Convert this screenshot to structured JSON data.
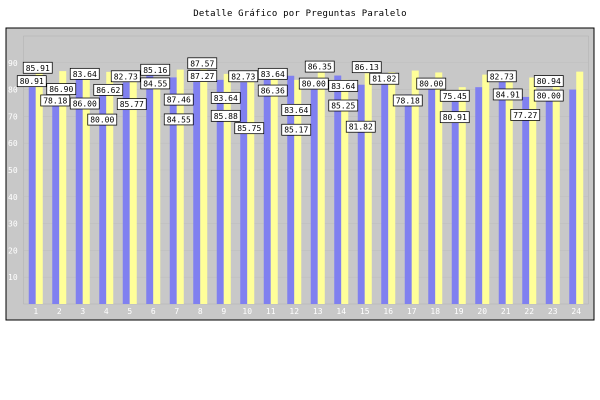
{
  "chart_data": {
    "type": "bar",
    "title": "Detalle Gráfico por Preguntas Paralelo",
    "xlabel": "",
    "ylabel": "",
    "ylim": [
      0,
      100
    ],
    "y_ticks": [
      10,
      20,
      30,
      40,
      50,
      60,
      70,
      80,
      90
    ],
    "categories": [
      "1",
      "2",
      "3",
      "4",
      "5",
      "6",
      "7",
      "8",
      "9",
      "10",
      "11",
      "12",
      "13",
      "14",
      "15",
      "16",
      "17",
      "18",
      "19",
      "20",
      "21",
      "22",
      "23",
      "24"
    ],
    "series": [
      {
        "color": "#8080f0",
        "values": [
          80.91,
          78.18,
          86.0,
          80.0,
          82.73,
          85.16,
          84.55,
          87.27,
          83.64,
          82.73,
          83.64,
          85.17,
          80.0,
          85.25,
          81.82,
          81.82,
          78.18,
          80.0,
          75.45,
          80.91,
          84.91,
          77.27,
          80.0,
          80.0
        ]
      },
      {
        "color": "#ffff99",
        "values": [
          85.91,
          86.9,
          83.64,
          86.62,
          85.77,
          84.55,
          87.46,
          87.57,
          85.88,
          85.75,
          86.36,
          83.64,
          86.35,
          83.64,
          86.13,
          86.5,
          87.1,
          86.4,
          80.91,
          85.6,
          82.73,
          84.5,
          80.94,
          86.7
        ]
      }
    ],
    "data_labels": [
      {
        "text": "80.91",
        "x": "1",
        "y": 80.91
      },
      {
        "text": "85.91",
        "x": "1",
        "y": 85.91
      },
      {
        "text": "78.18",
        "x": "2",
        "y": 78.18
      },
      {
        "text": "86.90",
        "x": "2",
        "y": 86.9
      },
      {
        "text": "83.64",
        "x": "3",
        "y": 83.64
      },
      {
        "text": "86.00",
        "x": "3",
        "y": 86.0
      },
      {
        "text": "80.00",
        "x": "4",
        "y": 80.0
      },
      {
        "text": "86.62",
        "x": "4",
        "y": 86.62
      },
      {
        "text": "82.73",
        "x": "5",
        "y": 82.73
      },
      {
        "text": "85.77",
        "x": "5",
        "y": 85.77
      },
      {
        "text": "85.16",
        "x": "6",
        "y": 85.16
      },
      {
        "text": "84.55",
        "x": "6",
        "y": 84.55
      },
      {
        "text": "87.46",
        "x": "7",
        "y": 87.46
      },
      {
        "text": "84.55",
        "x": "7",
        "y": 84.55
      },
      {
        "text": "87.57",
        "x": "8",
        "y": 87.57
      },
      {
        "text": "87.27",
        "x": "8",
        "y": 87.27
      },
      {
        "text": "83.64",
        "x": "9",
        "y": 83.64
      },
      {
        "text": "85.88",
        "x": "9",
        "y": 85.88
      },
      {
        "text": "82.73",
        "x": "10",
        "y": 82.73
      },
      {
        "text": "85.75",
        "x": "10",
        "y": 85.75
      },
      {
        "text": "83.64",
        "x": "11",
        "y": 83.64
      },
      {
        "text": "86.36",
        "x": "11",
        "y": 86.36
      },
      {
        "text": "83.64",
        "x": "12",
        "y": 83.64
      },
      {
        "text": "85.17",
        "x": "12",
        "y": 85.17
      },
      {
        "text": "80.00",
        "x": "13",
        "y": 80.0
      },
      {
        "text": "86.35",
        "x": "13",
        "y": 86.35
      },
      {
        "text": "83.64",
        "x": "14",
        "y": 83.64
      },
      {
        "text": "85.25",
        "x": "14",
        "y": 85.25
      },
      {
        "text": "81.82",
        "x": "15",
        "y": 81.82
      },
      {
        "text": "86.13",
        "x": "15",
        "y": 86.13
      },
      {
        "text": "81.82",
        "x": "16",
        "y": 81.82
      },
      {
        "text": "78.18",
        "x": "17",
        "y": 78.18
      },
      {
        "text": "80.00",
        "x": "18",
        "y": 80.0
      },
      {
        "text": "75.45",
        "x": "19",
        "y": 75.45
      },
      {
        "text": "80.91",
        "x": "19",
        "y": 80.91
      },
      {
        "text": "82.73",
        "x": "21",
        "y": 82.73
      },
      {
        "text": "84.91",
        "x": "21",
        "y": 84.91
      },
      {
        "text": "77.27",
        "x": "22",
        "y": 77.27
      },
      {
        "text": "80.94",
        "x": "23",
        "y": 80.94
      },
      {
        "text": "80.00",
        "x": "23",
        "y": 80.0
      }
    ],
    "grid": true,
    "legend": "none",
    "colors": {
      "plot_background": "#c8c8c8",
      "tick_label": "#ffffff",
      "label_box": "#ffffff"
    }
  }
}
